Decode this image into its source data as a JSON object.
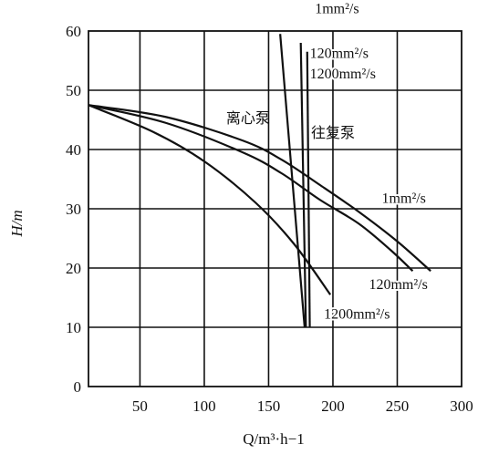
{
  "chart_data": {
    "type": "line",
    "xlabel": "Q/m³·h−1",
    "ylabel": "H/m",
    "xlim": [
      10,
      300
    ],
    "ylim": [
      0,
      60
    ],
    "x_ticks": [
      "50",
      "100",
      "150",
      "200",
      "250",
      "300"
    ],
    "y_ticks": [
      "0",
      "10",
      "20",
      "30",
      "40",
      "50",
      "60"
    ],
    "grid": true,
    "annotations": [
      {
        "text": "离心泵",
        "x": 117,
        "y": 44.5
      },
      {
        "text": "往复泵",
        "x": 183,
        "y": 42
      },
      {
        "text": "1mm²/s",
        "x": 186,
        "y": 63
      },
      {
        "text": "120mm²/s",
        "x": 182,
        "y": 55.5
      },
      {
        "text": "1200mm²/s",
        "x": 182,
        "y": 52
      },
      {
        "text": "1mm²/s",
        "x": 238,
        "y": 31
      },
      {
        "text": "120mm²/s",
        "x": 228,
        "y": 16.5
      },
      {
        "text": "1200mm²/s",
        "x": 193,
        "y": 11.5
      }
    ],
    "series": [
      {
        "name": "1mm²/s",
        "group": "离心泵",
        "x": [
          10,
          70,
          130,
          160,
          190,
          220,
          250,
          276
        ],
        "y": [
          47.5,
          45.5,
          41.5,
          38.3,
          34,
          29.5,
          24.5,
          19.5
        ]
      },
      {
        "name": "120mm²/s",
        "group": "离心泵",
        "x": [
          10,
          70,
          130,
          160,
          190,
          220,
          245,
          262
        ],
        "y": [
          47.5,
          44.5,
          39.5,
          36,
          31.5,
          27.5,
          23,
          19.5
        ]
      },
      {
        "name": "1200mm²/s",
        "group": "离心泵",
        "x": [
          10,
          60,
          100,
          140,
          170,
          198
        ],
        "y": [
          47.5,
          43,
          38,
          31,
          24,
          15.5
        ]
      },
      {
        "name": "1mm²/s",
        "group": "往复泵",
        "x": [
          159,
          178
        ],
        "y": [
          59.5,
          10
        ]
      },
      {
        "name": "120mm²/s",
        "group": "往复泵",
        "x": [
          175,
          179
        ],
        "y": [
          58,
          10
        ]
      },
      {
        "name": "1200mm²/s",
        "group": "往复泵",
        "x": [
          180,
          182
        ],
        "y": [
          56.5,
          10
        ]
      }
    ]
  }
}
